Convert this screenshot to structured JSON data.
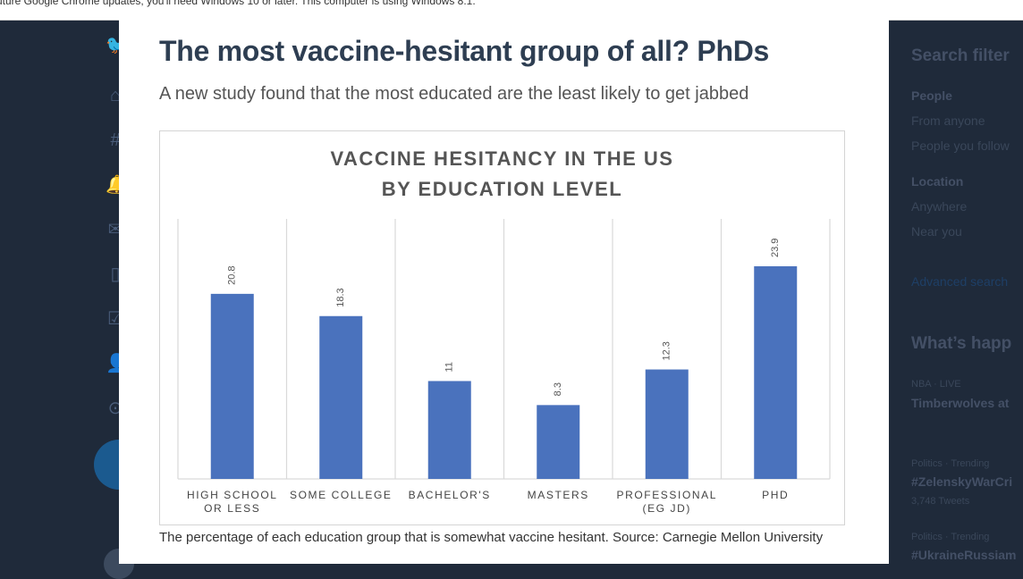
{
  "browser_notice": "uture Google Chrome updates, you'll need Windows 10 or later. This computer is using Windows 8.1.",
  "right_panel": {
    "heading": "Search filter",
    "people_label": "People",
    "from_anyone": "From anyone",
    "people_you_follow": "People you follow",
    "location_label": "Location",
    "anywhere": "Anywhere",
    "near_you": "Near you",
    "advanced_search": "Advanced search",
    "whats_happening": "What’s happ",
    "trend1_meta": "NBA · LIVE",
    "trend1_title": "Timberwolves at",
    "trend2_meta": "Politics · Trending",
    "trend2_title": "#ZelenskyWarCri",
    "trend2_count": "3,748 Tweets",
    "trend3_meta": "Politics · Trending",
    "trend3_title": "#UkraineRussiam"
  },
  "article": {
    "headline": "The most vaccine-hesitant group of all? PhDs",
    "subhead": "A new study found that the most educated are the least likely to get jabbed",
    "caption": "The percentage of each education group that is somewhat vaccine hesitant. Source: Carnegie Mellon University"
  },
  "chart_data": {
    "type": "bar",
    "title_line1": "VACCINE HESITANCY IN THE US",
    "title_line2": "BY EDUCATION LEVEL",
    "categories": [
      [
        "HIGH SCHOOL",
        "OR LESS"
      ],
      [
        "SOME COLLEGE"
      ],
      [
        "BACHELOR'S"
      ],
      [
        "MASTERS"
      ],
      [
        "PROFESSIONAL",
        "(EG JD)"
      ],
      [
        "PHD"
      ]
    ],
    "values": [
      20.8,
      18.3,
      11,
      8.3,
      12.3,
      23.9
    ],
    "value_labels": [
      "20.8",
      "18.3",
      "11",
      "8.3",
      "12.3",
      "23.9"
    ],
    "ylim": [
      0,
      24
    ],
    "bar_color": "#4a72bd",
    "grid": "vertical separators",
    "legend": "none"
  },
  "colors": {
    "background": "#1f2a3a",
    "headline": "#2e3e52",
    "bar": "#4a72bd"
  }
}
